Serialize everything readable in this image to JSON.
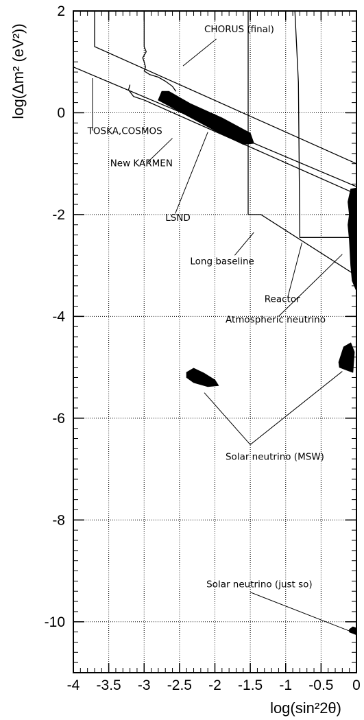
{
  "chart_data": {
    "type": "scatter",
    "xlabel": "log(sin²2θ)",
    "ylabel": "log(Δm² (eV²))",
    "xlim": [
      -4,
      0
    ],
    "ylim": [
      -11,
      2
    ],
    "grid": true,
    "x_ticks": [
      -4,
      -3.5,
      -3,
      -2.5,
      -2,
      -1.5,
      -1,
      -0.5,
      0
    ],
    "x_tick_labels": [
      "-4",
      "-3.5",
      "-3",
      "-2.5",
      "-2",
      "-1.5",
      "-1",
      "-0.5",
      "0"
    ],
    "y_ticks": [
      2,
      0,
      -2,
      -4,
      -6,
      -8,
      -10
    ],
    "y_tick_labels": [
      "2",
      "0",
      "-2",
      "-4",
      "-6",
      "-8",
      "-10"
    ],
    "exclusion_curves": [
      {
        "name": "CHORUS (final)",
        "points": [
          [
            -3.7,
            2
          ],
          [
            -3.7,
            1.3
          ],
          [
            0,
            -1.0
          ]
        ]
      },
      {
        "name": "TOSKA,COSMOS",
        "points": [
          [
            -4,
            0.9
          ],
          [
            0,
            -1.45
          ]
        ]
      },
      {
        "name": "New KARMEN",
        "points": [
          [
            -3.2,
            0.55
          ],
          [
            -3.22,
            0.45
          ],
          [
            -3.15,
            0.32
          ],
          [
            -3.0,
            0.25
          ],
          [
            -0.08,
            -1.55
          ]
        ]
      },
      {
        "name": "Long baseline",
        "points": [
          [
            -1.53,
            2
          ],
          [
            -1.53,
            -2.0
          ],
          [
            -1.35,
            -2.0
          ],
          [
            0,
            -3.2
          ]
        ]
      },
      {
        "name": "Reactor",
        "points": [
          [
            -0.87,
            2
          ],
          [
            -0.82,
            0.6
          ],
          [
            -0.8,
            -2.45
          ],
          [
            0,
            -2.45
          ]
        ]
      },
      {
        "name": "CHORUS left edge",
        "points": [
          [
            -3.0,
            2
          ],
          [
            -3.0,
            1.3
          ],
          [
            -2.97,
            1.2
          ],
          [
            -3.02,
            1.08
          ],
          [
            -3.0,
            1.0
          ],
          [
            -2.98,
            0.9
          ],
          [
            -3.0,
            0.82
          ],
          [
            -2.92,
            0.75
          ],
          [
            -2.8,
            0.7
          ],
          [
            -2.7,
            0.62
          ],
          [
            -2.6,
            0.52
          ],
          [
            -2.55,
            0.42
          ]
        ]
      }
    ],
    "allowed_regions": [
      {
        "name": "LSND",
        "points": [
          [
            -2.75,
            0.42
          ],
          [
            -2.65,
            0.42
          ],
          [
            -2.35,
            0.18
          ],
          [
            -1.9,
            -0.1
          ],
          [
            -1.5,
            -0.4
          ],
          [
            -1.45,
            -0.6
          ],
          [
            -1.6,
            -0.62
          ],
          [
            -2.0,
            -0.35
          ],
          [
            -2.4,
            -0.05
          ],
          [
            -2.8,
            0.25
          ]
        ]
      },
      {
        "name": "Atmospheric neutrino",
        "points": [
          [
            0,
            -1.48
          ],
          [
            -0.08,
            -1.5
          ],
          [
            -0.12,
            -1.75
          ],
          [
            -0.1,
            -2.0
          ],
          [
            -0.12,
            -2.2
          ],
          [
            -0.1,
            -2.5
          ],
          [
            -0.08,
            -3.0
          ],
          [
            -0.06,
            -3.3
          ],
          [
            0,
            -3.5
          ]
        ]
      },
      {
        "name": "Solar neutrino (MSW) small angle",
        "points": [
          [
            -2.4,
            -5.1
          ],
          [
            -2.3,
            -5.02
          ],
          [
            -2.15,
            -5.12
          ],
          [
            -2.0,
            -5.25
          ],
          [
            -1.95,
            -5.36
          ],
          [
            -2.1,
            -5.38
          ],
          [
            -2.3,
            -5.3
          ],
          [
            -2.4,
            -5.2
          ]
        ]
      },
      {
        "name": "Solar neutrino (MSW) large angle",
        "points": [
          [
            -0.25,
            -4.9
          ],
          [
            -0.18,
            -4.6
          ],
          [
            -0.08,
            -4.52
          ],
          [
            -0.03,
            -4.7
          ],
          [
            -0.05,
            -5.1
          ],
          [
            -0.15,
            -5.05
          ],
          [
            -0.24,
            -5.0
          ]
        ]
      },
      {
        "name": "Solar neutrino (just so)",
        "points": [
          [
            -0.1,
            -10.15
          ],
          [
            -0.05,
            -10.1
          ],
          [
            -0.01,
            -10.12
          ],
          [
            -0.01,
            -10.25
          ],
          [
            -0.1,
            -10.2
          ]
        ]
      }
    ],
    "annotations": [
      {
        "text": "CHORUS (final)",
        "label_xy": [
          -2.15,
          1.58
        ],
        "line": [
          [
            -1.98,
            1.45
          ],
          [
            -2.45,
            0.92
          ]
        ]
      },
      {
        "text": "TOSKA,COSMOS",
        "label_xy": [
          -3.8,
          -0.42
        ],
        "line": [
          [
            -3.73,
            -0.35
          ],
          [
            -3.73,
            0.68
          ]
        ]
      },
      {
        "text": "New KARMEN",
        "label_xy": [
          -3.48,
          -1.05
        ],
        "line": [
          [
            -2.95,
            -0.97
          ],
          [
            -2.6,
            -0.5
          ]
        ]
      },
      {
        "text": "LSND",
        "label_xy": [
          -2.7,
          -2.12
        ],
        "line": [
          [
            -2.56,
            -1.98
          ],
          [
            -2.1,
            -0.38
          ]
        ]
      },
      {
        "text": "Long baseline",
        "label_xy": [
          -2.35,
          -2.98
        ],
        "line": [
          [
            -1.72,
            -2.8
          ],
          [
            -1.45,
            -2.35
          ]
        ]
      },
      {
        "text": "Reactor",
        "label_xy": [
          -1.3,
          -3.72
        ],
        "line": [
          [
            -0.97,
            -3.62
          ],
          [
            -0.77,
            -2.55
          ]
        ]
      },
      {
        "text": "Atmospheric neutrino",
        "label_xy": [
          -1.85,
          -4.12
        ],
        "line": [
          [
            -1.1,
            -4.0
          ],
          [
            -0.2,
            -2.78
          ]
        ]
      },
      {
        "text": "Solar neutrino (MSW)",
        "label_xy": [
          -1.85,
          -6.82
        ],
        "line": [
          [
            -1.5,
            -6.52
          ],
          [
            -2.15,
            -5.5
          ],
          [
            -1.5,
            -6.52
          ],
          [
            -0.2,
            -5.08
          ]
        ]
      },
      {
        "text": "Solar neutrino (just so)",
        "label_xy": [
          -2.12,
          -9.32
        ],
        "line": [
          [
            -1.5,
            -9.42
          ],
          [
            -0.1,
            -10.18
          ]
        ]
      }
    ]
  }
}
